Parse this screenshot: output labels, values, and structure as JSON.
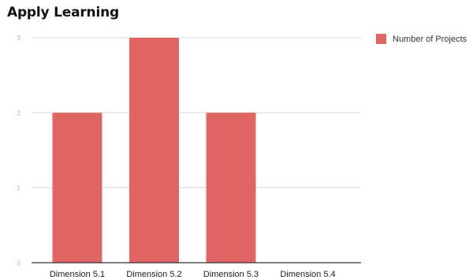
{
  "chart_data": {
    "type": "bar",
    "title": "Apply Learning",
    "categories": [
      "Dimension 5.1",
      "Dimension 5.2",
      "Dimension 5.3",
      "Dimension 5.4"
    ],
    "series": [
      {
        "name": "Number of Projects",
        "values": [
          2,
          3,
          2,
          0
        ],
        "color": "#e06666"
      }
    ],
    "xlabel": "",
    "ylabel": "",
    "ylim": [
      0,
      3
    ],
    "y_ticks": [
      "0",
      "1",
      "2",
      "3"
    ],
    "grid": true,
    "legend_position": "top-right",
    "colors": {
      "bar": "#e06666",
      "grid": "#dcdcdc",
      "axis": "#333333"
    }
  }
}
